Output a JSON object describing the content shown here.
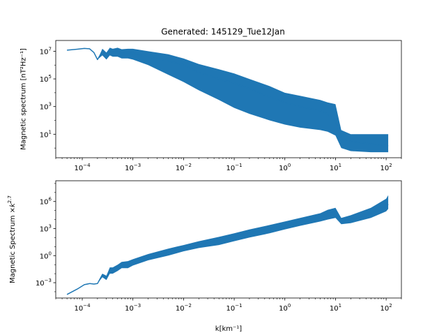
{
  "chart_data": [
    {
      "type": "line",
      "title": "Generated: 145129_Tue12Jan",
      "xlabel": "",
      "ylabel": "Magnetic spectrum [nT²Hz⁻¹]",
      "xscale": "log",
      "yscale": "log",
      "xlim": [
        3e-05,
        200
      ],
      "ylim": [
        0.2,
        60000000
      ],
      "grid": false,
      "color": "#1f77b4",
      "x_ticks": [
        {
          "value": 0.0001,
          "base": "10",
          "exp": "−4"
        },
        {
          "value": 0.001,
          "base": "10",
          "exp": "−3"
        },
        {
          "value": 0.01,
          "base": "10",
          "exp": "−2"
        },
        {
          "value": 0.1,
          "base": "10",
          "exp": "−1"
        },
        {
          "value": 1,
          "base": "10",
          "exp": "0"
        },
        {
          "value": 10,
          "base": "10",
          "exp": "1"
        },
        {
          "value": 100,
          "base": "10",
          "exp": "2"
        }
      ],
      "y_ticks": [
        {
          "value": 10,
          "base": "10",
          "exp": "1"
        },
        {
          "value": 1000,
          "base": "10",
          "exp": "3"
        },
        {
          "value": 100000,
          "base": "10",
          "exp": "5"
        },
        {
          "value": 10000000,
          "base": "10",
          "exp": "7"
        }
      ],
      "series": [
        {
          "x": [
            5e-05,
            8e-05,
            0.00011,
            0.00014,
            0.00017,
            0.0002,
            0.00025,
            0.0003,
            0.00035,
            0.0004,
            0.0005,
            0.0006,
            0.0008,
            0.001,
            0.002,
            0.005,
            0.01,
            0.02,
            0.05,
            0.1,
            0.2,
            0.5,
            1,
            2,
            5,
            7,
            10,
            13,
            20,
            50,
            100,
            110
          ],
          "y": [
            12000000,
            14000000,
            16000000,
            15000000,
            8000000,
            2500000,
            10000000,
            4000000,
            12000000,
            9000000,
            11000000,
            7000000,
            8000000,
            7000000,
            4000000,
            2000000,
            1000000,
            300000,
            100000,
            50000,
            20000,
            5000,
            2000,
            1000,
            500,
            300,
            100,
            5,
            3,
            2,
            1.5,
            1.5
          ],
          "y_low": [
            12000000,
            14000000,
            16000000,
            15000000,
            8000000,
            2500000,
            5000000,
            2500000,
            5000000,
            4000000,
            4000000,
            3000000,
            3000000,
            2500000,
            1000000,
            200000,
            60000,
            15000,
            3000,
            800,
            300,
            100,
            50,
            30,
            20,
            15,
            8,
            1,
            0.6,
            0.5,
            0.5,
            0.5
          ],
          "y_high": [
            12000000,
            14000000,
            16000000,
            15000000,
            8000000,
            2500000,
            15000000,
            8000000,
            18000000,
            15000000,
            18000000,
            14000000,
            15000000,
            15000000,
            10000000,
            6000000,
            3000000,
            1200000,
            500000,
            250000,
            100000,
            30000,
            10000,
            6000,
            3000,
            2000,
            1500,
            20,
            10,
            10,
            10,
            10
          ]
        }
      ]
    },
    {
      "type": "line",
      "title": "",
      "xlabel": "k[km⁻¹]",
      "ylabel": "Magnetic Spectrum ×",
      "ylabel_math_base": "k",
      "ylabel_math_exp": "2.7",
      "xscale": "log",
      "yscale": "log",
      "xlim": [
        3e-05,
        200
      ],
      "ylim": [
        2e-05,
        200000000
      ],
      "grid": false,
      "color": "#1f77b4",
      "x_ticks": [
        {
          "value": 0.0001,
          "base": "10",
          "exp": "−4"
        },
        {
          "value": 0.001,
          "base": "10",
          "exp": "−3"
        },
        {
          "value": 0.01,
          "base": "10",
          "exp": "−2"
        },
        {
          "value": 0.1,
          "base": "10",
          "exp": "−1"
        },
        {
          "value": 1,
          "base": "10",
          "exp": "0"
        },
        {
          "value": 10,
          "base": "10",
          "exp": "1"
        },
        {
          "value": 100,
          "base": "10",
          "exp": "2"
        }
      ],
      "y_ticks": [
        {
          "value": 0.001,
          "base": "10",
          "exp": "−3"
        },
        {
          "value": 1,
          "base": "10",
          "exp": "0"
        },
        {
          "value": 1000,
          "base": "10",
          "exp": "3"
        },
        {
          "value": 1000000,
          "base": "10",
          "exp": "6"
        }
      ],
      "series": [
        {
          "x": [
            5e-05,
            8e-05,
            0.00011,
            0.00014,
            0.00017,
            0.0002,
            0.00025,
            0.0003,
            0.00035,
            0.0004,
            0.0005,
            0.0006,
            0.0008,
            0.001,
            0.002,
            0.005,
            0.01,
            0.02,
            0.05,
            0.1,
            0.2,
            0.5,
            1,
            2,
            5,
            7,
            10,
            13,
            20,
            50,
            100,
            110
          ],
          "y": [
            5e-05,
            0.0002,
            0.0006,
            0.0008,
            0.0007,
            0.0008,
            0.008,
            0.004,
            0.03,
            0.03,
            0.05,
            0.1,
            0.1,
            0.2,
            0.8,
            3,
            8,
            20,
            60,
            150,
            400,
            1000,
            3000,
            8000,
            30000,
            60000,
            80000,
            6000,
            10000,
            50000,
            300000,
            500000
          ],
          "y_low": [
            5e-05,
            0.0002,
            0.0006,
            0.0008,
            0.0007,
            0.0008,
            0.004,
            0.002,
            0.01,
            0.01,
            0.02,
            0.04,
            0.04,
            0.08,
            0.3,
            1,
            3,
            7,
            15,
            40,
            100,
            300,
            800,
            2000,
            6000,
            10000,
            15000,
            3000,
            4000,
            15000,
            80000,
            150000
          ],
          "y_high": [
            5e-05,
            0.0002,
            0.0006,
            0.0008,
            0.0007,
            0.0008,
            0.01,
            0.006,
            0.05,
            0.05,
            0.1,
            0.2,
            0.25,
            0.4,
            1.5,
            6,
            15,
            40,
            120,
            300,
            800,
            2500,
            6000,
            15000,
            50000,
            120000,
            200000,
            15000,
            30000,
            200000,
            2000000,
            5000000
          ]
        }
      ]
    }
  ]
}
